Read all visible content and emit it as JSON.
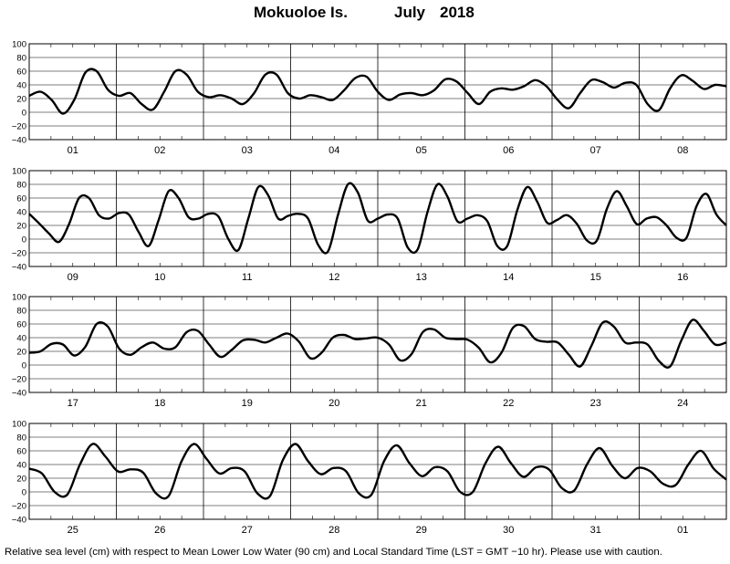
{
  "title": {
    "station": "Mokuoloe Is.",
    "month": "July",
    "year": "2018"
  },
  "footnote": "Relative sea level (cm) with respect to Mean Lower Low Water (90 cm) and Local Standard Time (LST = GMT −10 hr). Please use with caution.",
  "chart_data": {
    "type": "line",
    "title": "Mokuoloe Is.   July   2018",
    "xlabel": "",
    "ylabel": "",
    "ylim": [
      -40,
      100
    ],
    "yticks": [
      -40,
      -20,
      0,
      20,
      40,
      60,
      80,
      100
    ],
    "y_tick_labels": [
      "−40",
      "−20",
      "0",
      "20",
      "40",
      "60",
      "80",
      "100"
    ],
    "grid": true,
    "line_color": "#000000",
    "panels": [
      {
        "days": [
          "01",
          "02",
          "03",
          "04",
          "05",
          "06",
          "07",
          "08"
        ],
        "values": [
          24,
          30,
          18,
          -2,
          18,
          58,
          60,
          33,
          24,
          28,
          12,
          4,
          30,
          60,
          55,
          30,
          22,
          25,
          20,
          12,
          28,
          55,
          55,
          28,
          20,
          25,
          22,
          18,
          32,
          50,
          52,
          30,
          18,
          26,
          28,
          25,
          32,
          48,
          45,
          28,
          12,
          30,
          35,
          33,
          38,
          47,
          38,
          18,
          6,
          28,
          47,
          44,
          36,
          43,
          40,
          12,
          3,
          35,
          54,
          46,
          34,
          40,
          38
        ]
      },
      {
        "days": [
          "09",
          "10",
          "11",
          "12",
          "13",
          "14",
          "15",
          "16"
        ],
        "values": [
          37,
          23,
          8,
          -4,
          22,
          60,
          60,
          35,
          30,
          38,
          36,
          10,
          -10,
          28,
          70,
          60,
          32,
          30,
          37,
          33,
          0,
          -16,
          30,
          76,
          64,
          30,
          34,
          37,
          30,
          -8,
          -18,
          35,
          80,
          68,
          27,
          30,
          36,
          30,
          -12,
          -15,
          40,
          80,
          62,
          26,
          30,
          35,
          26,
          -10,
          -10,
          42,
          76,
          55,
          24,
          28,
          35,
          22,
          -2,
          -2,
          44,
          70,
          48,
          22,
          30,
          32,
          20,
          2,
          2,
          48,
          66,
          36,
          20
        ]
      },
      {
        "days": [
          "17",
          "18",
          "19",
          "20",
          "21",
          "22",
          "23",
          "24"
        ],
        "values": [
          18,
          20,
          31,
          30,
          14,
          27,
          60,
          56,
          24,
          15,
          26,
          33,
          24,
          26,
          48,
          50,
          30,
          12,
          22,
          36,
          37,
          33,
          40,
          46,
          34,
          10,
          18,
          40,
          44,
          38,
          39,
          40,
          30,
          7,
          16,
          48,
          52,
          40,
          38,
          37,
          25,
          4,
          18,
          54,
          57,
          38,
          34,
          33,
          15,
          -2,
          28,
          62,
          56,
          33,
          33,
          30,
          6,
          -2,
          36,
          66,
          50,
          30,
          33
        ]
      },
      {
        "days": [
          "25",
          "26",
          "27",
          "28",
          "29",
          "30",
          "31",
          "01"
        ],
        "values": [
          34,
          27,
          0,
          -4,
          40,
          70,
          52,
          30,
          33,
          28,
          -2,
          -6,
          44,
          70,
          48,
          27,
          35,
          30,
          -2,
          -6,
          46,
          70,
          45,
          26,
          35,
          30,
          -2,
          -4,
          45,
          68,
          42,
          23,
          36,
          30,
          0,
          0,
          42,
          66,
          42,
          22,
          36,
          33,
          6,
          2,
          40,
          64,
          38,
          20,
          35,
          30,
          12,
          10,
          40,
          60,
          34,
          18
        ]
      }
    ]
  }
}
